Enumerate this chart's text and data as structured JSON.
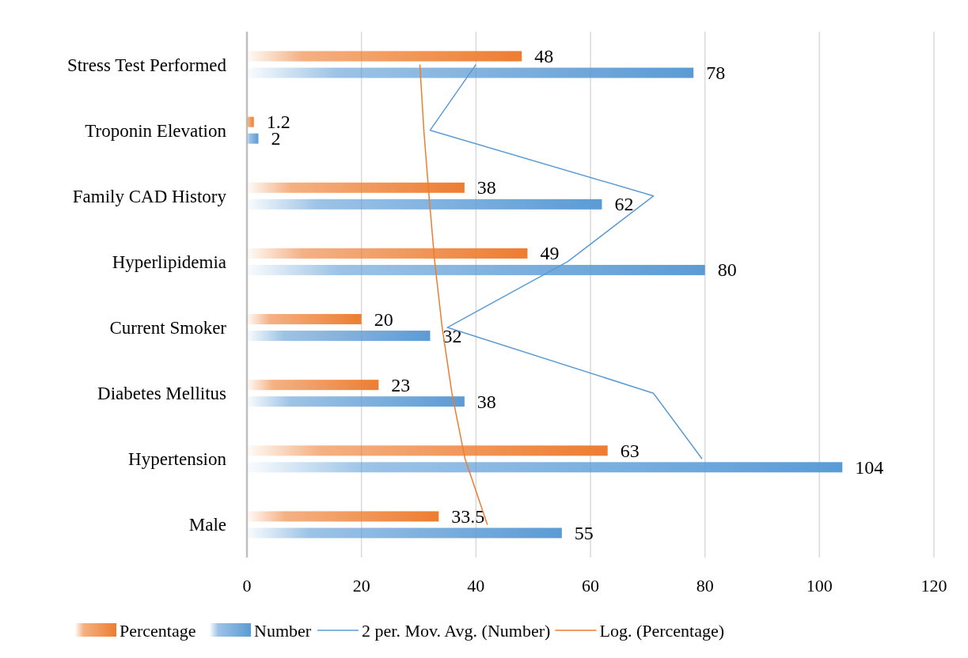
{
  "chart_data": {
    "type": "bar",
    "orientation": "horizontal",
    "categories": [
      "Stress Test Performed",
      "Troponin Elevation",
      "Family CAD History",
      "Hyperlipidemia",
      "Current Smoker",
      "Diabetes Mellitus",
      "Hypertension",
      "Male"
    ],
    "series": [
      {
        "name": "Percentage",
        "color": "#ed7d31",
        "values": [
          48,
          1.2,
          38,
          49,
          20,
          23,
          63,
          33.5
        ],
        "value_labels": [
          "48",
          "1.2",
          "38",
          "49",
          "20",
          "23",
          "63",
          "33.5"
        ]
      },
      {
        "name": "Number",
        "color": "#5b9bd5",
        "values": [
          78,
          2,
          62,
          80,
          32,
          38,
          104,
          55
        ],
        "value_labels": [
          "78",
          "2",
          "62",
          "80",
          "32",
          "38",
          "104",
          "55"
        ]
      },
      {
        "name": "2 per. Mov. Avg. (Number)",
        "type": "line",
        "color": "#5b9bd5",
        "values": [
          40,
          32,
          71,
          56,
          35,
          71,
          79.5,
          null
        ]
      },
      {
        "name": "Log. (Percentage)",
        "type": "line",
        "color": "#ed7d31",
        "values": [
          30.2,
          30.9,
          31.8,
          32.8,
          34.1,
          35.8,
          38.1,
          42
        ]
      }
    ],
    "xlim": [
      0,
      120
    ],
    "xticks": [
      0,
      20,
      40,
      60,
      80,
      100,
      120
    ],
    "grid": "x",
    "legend": "bottom"
  }
}
